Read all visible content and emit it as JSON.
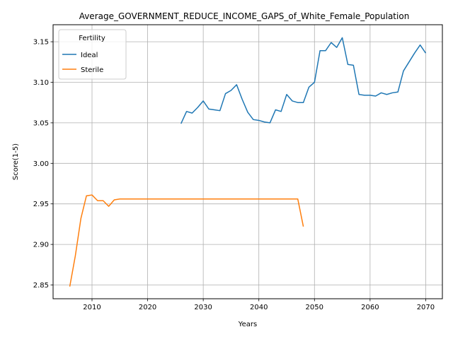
{
  "chart_data": {
    "type": "line",
    "title": "Average_GOVERNMENT_REDUCE_INCOME_GAPS_of_White_Female_Population",
    "xlabel": "Years",
    "ylabel": "Score(1-5)",
    "xlim": [
      2003,
      2073
    ],
    "ylim": [
      2.833,
      3.171
    ],
    "xticks": [
      2010,
      2020,
      2030,
      2040,
      2050,
      2060,
      2070
    ],
    "yticks": [
      2.85,
      2.9,
      2.95,
      3.0,
      3.05,
      3.1,
      3.15
    ],
    "xtick_labels": [
      "2010",
      "2020",
      "2030",
      "2040",
      "2050",
      "2060",
      "2070"
    ],
    "ytick_labels": [
      "2.85",
      "2.90",
      "2.95",
      "3.00",
      "3.05",
      "3.10",
      "3.15"
    ],
    "grid": true,
    "legend": {
      "title": "Fertility",
      "position": "upper-left"
    },
    "series": [
      {
        "name": "Ideal",
        "color": "#1f77b4",
        "x": [
          2026,
          2027,
          2028,
          2029,
          2030,
          2031,
          2032,
          2033,
          2034,
          2035,
          2036,
          2037,
          2038,
          2039,
          2040,
          2041,
          2042,
          2043,
          2044,
          2045,
          2046,
          2047,
          2048,
          2049,
          2050,
          2051,
          2052,
          2053,
          2054,
          2055,
          2056,
          2057,
          2058,
          2059,
          2060,
          2061,
          2062,
          2063,
          2064,
          2065,
          2066,
          2067,
          2068,
          2069,
          2070
        ],
        "y": [
          3.049,
          3.064,
          3.062,
          3.069,
          3.077,
          3.067,
          3.066,
          3.065,
          3.086,
          3.09,
          3.097,
          3.079,
          3.063,
          3.054,
          3.053,
          3.051,
          3.05,
          3.066,
          3.064,
          3.085,
          3.077,
          3.075,
          3.075,
          3.094,
          3.1,
          3.139,
          3.139,
          3.149,
          3.143,
          3.155,
          3.122,
          3.121,
          3.085,
          3.084,
          3.084,
          3.083,
          3.087,
          3.085,
          3.087,
          3.088,
          3.114,
          3.125,
          3.136,
          3.146,
          3.136
        ]
      },
      {
        "name": "Sterile",
        "color": "#ff7f0e",
        "x": [
          2006,
          2007,
          2008,
          2009,
          2010,
          2011,
          2012,
          2013,
          2014,
          2015,
          2016,
          2017,
          2018,
          2019,
          2020,
          2021,
          2022,
          2023,
          2024,
          2025,
          2026,
          2027,
          2028,
          2029,
          2030,
          2031,
          2032,
          2033,
          2034,
          2035,
          2036,
          2037,
          2038,
          2039,
          2040,
          2041,
          2042,
          2043,
          2044,
          2045,
          2046,
          2047,
          2048
        ],
        "y": [
          2.848,
          2.886,
          2.932,
          2.96,
          2.961,
          2.954,
          2.954,
          2.947,
          2.955,
          2.956,
          2.956,
          2.956,
          2.956,
          2.956,
          2.956,
          2.956,
          2.956,
          2.956,
          2.956,
          2.956,
          2.956,
          2.956,
          2.956,
          2.956,
          2.956,
          2.956,
          2.956,
          2.956,
          2.956,
          2.956,
          2.956,
          2.956,
          2.956,
          2.956,
          2.956,
          2.956,
          2.956,
          2.956,
          2.956,
          2.956,
          2.956,
          2.956,
          2.922
        ]
      }
    ]
  }
}
